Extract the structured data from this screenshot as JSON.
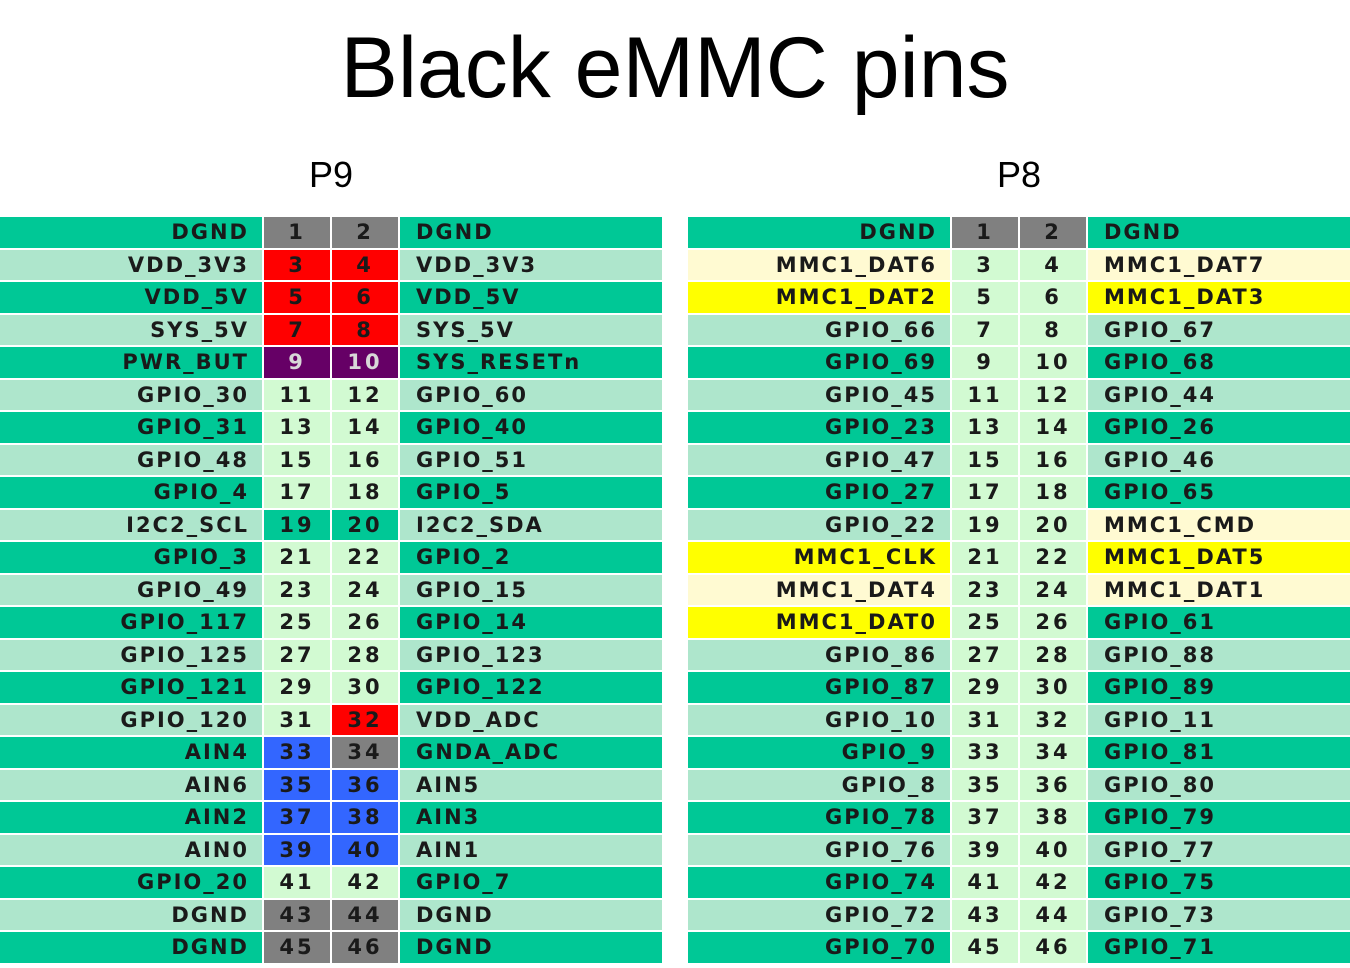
{
  "title": "Black eMMC pins",
  "colors": {
    "dark_green": "#00c896",
    "light_green": "#aee6cc",
    "pin_green": "#d2fad2",
    "gray": "#808080",
    "red": "#ff0000",
    "purple": "#660066",
    "blue": "#3366ff",
    "yellow": "#ffff00",
    "cream": "#fffad2"
  },
  "connectors": [
    {
      "label": "P9",
      "rows": [
        {
          "left": "DGND",
          "lp": "1",
          "rp": "2",
          "right": "DGND",
          "lc": "dark_green",
          "lpc": "gray",
          "rpc": "gray",
          "rc": "dark_green"
        },
        {
          "left": "VDD_3V3",
          "lp": "3",
          "rp": "4",
          "right": "VDD_3V3",
          "lc": "light_green",
          "lpc": "red",
          "rpc": "red",
          "rc": "light_green"
        },
        {
          "left": "VDD_5V",
          "lp": "5",
          "rp": "6",
          "right": "VDD_5V",
          "lc": "dark_green",
          "lpc": "red",
          "rpc": "red",
          "rc": "dark_green"
        },
        {
          "left": "SYS_5V",
          "lp": "7",
          "rp": "8",
          "right": "SYS_5V",
          "lc": "light_green",
          "lpc": "red",
          "rpc": "red",
          "rc": "light_green"
        },
        {
          "left": "PWR_BUT",
          "lp": "9",
          "rp": "10",
          "right": "SYS_RESETn",
          "lc": "dark_green",
          "lpc": "purple",
          "rpc": "purple",
          "rc": "dark_green"
        },
        {
          "left": "GPIO_30",
          "lp": "11",
          "rp": "12",
          "right": "GPIO_60",
          "lc": "light_green",
          "lpc": "pin_green",
          "rpc": "pin_green",
          "rc": "light_green"
        },
        {
          "left": "GPIO_31",
          "lp": "13",
          "rp": "14",
          "right": "GPIO_40",
          "lc": "dark_green",
          "lpc": "pin_green",
          "rpc": "pin_green",
          "rc": "dark_green"
        },
        {
          "left": "GPIO_48",
          "lp": "15",
          "rp": "16",
          "right": "GPIO_51",
          "lc": "light_green",
          "lpc": "pin_green",
          "rpc": "pin_green",
          "rc": "light_green"
        },
        {
          "left": "GPIO_4",
          "lp": "17",
          "rp": "18",
          "right": "GPIO_5",
          "lc": "dark_green",
          "lpc": "pin_green",
          "rpc": "pin_green",
          "rc": "dark_green"
        },
        {
          "left": "I2C2_SCL",
          "lp": "19",
          "rp": "20",
          "right": "I2C2_SDA",
          "lc": "light_green",
          "lpc": "dark_green",
          "rpc": "dark_green",
          "rc": "light_green"
        },
        {
          "left": "GPIO_3",
          "lp": "21",
          "rp": "22",
          "right": "GPIO_2",
          "lc": "dark_green",
          "lpc": "pin_green",
          "rpc": "pin_green",
          "rc": "dark_green"
        },
        {
          "left": "GPIO_49",
          "lp": "23",
          "rp": "24",
          "right": "GPIO_15",
          "lc": "light_green",
          "lpc": "pin_green",
          "rpc": "pin_green",
          "rc": "light_green"
        },
        {
          "left": "GPIO_117",
          "lp": "25",
          "rp": "26",
          "right": "GPIO_14",
          "lc": "dark_green",
          "lpc": "pin_green",
          "rpc": "pin_green",
          "rc": "dark_green"
        },
        {
          "left": "GPIO_125",
          "lp": "27",
          "rp": "28",
          "right": "GPIO_123",
          "lc": "light_green",
          "lpc": "pin_green",
          "rpc": "pin_green",
          "rc": "light_green"
        },
        {
          "left": "GPIO_121",
          "lp": "29",
          "rp": "30",
          "right": "GPIO_122",
          "lc": "dark_green",
          "lpc": "pin_green",
          "rpc": "pin_green",
          "rc": "dark_green"
        },
        {
          "left": "GPIO_120",
          "lp": "31",
          "rp": "32",
          "right": "VDD_ADC",
          "lc": "light_green",
          "lpc": "pin_green",
          "rpc": "red",
          "rc": "light_green"
        },
        {
          "left": "AIN4",
          "lp": "33",
          "rp": "34",
          "right": "GNDA_ADC",
          "lc": "dark_green",
          "lpc": "blue",
          "rpc": "gray",
          "rc": "dark_green"
        },
        {
          "left": "AIN6",
          "lp": "35",
          "rp": "36",
          "right": "AIN5",
          "lc": "light_green",
          "lpc": "blue",
          "rpc": "blue",
          "rc": "light_green"
        },
        {
          "left": "AIN2",
          "lp": "37",
          "rp": "38",
          "right": "AIN3",
          "lc": "dark_green",
          "lpc": "blue",
          "rpc": "blue",
          "rc": "dark_green"
        },
        {
          "left": "AIN0",
          "lp": "39",
          "rp": "40",
          "right": "AIN1",
          "lc": "light_green",
          "lpc": "blue",
          "rpc": "blue",
          "rc": "light_green"
        },
        {
          "left": "GPIO_20",
          "lp": "41",
          "rp": "42",
          "right": "GPIO_7",
          "lc": "dark_green",
          "lpc": "pin_green",
          "rpc": "pin_green",
          "rc": "dark_green"
        },
        {
          "left": "DGND",
          "lp": "43",
          "rp": "44",
          "right": "DGND",
          "lc": "light_green",
          "lpc": "gray",
          "rpc": "gray",
          "rc": "light_green"
        },
        {
          "left": "DGND",
          "lp": "45",
          "rp": "46",
          "right": "DGND",
          "lc": "dark_green",
          "lpc": "gray",
          "rpc": "gray",
          "rc": "dark_green"
        }
      ]
    },
    {
      "label": "P8",
      "rows": [
        {
          "left": "DGND",
          "lp": "1",
          "rp": "2",
          "right": "DGND",
          "lc": "dark_green",
          "lpc": "gray",
          "rpc": "gray",
          "rc": "dark_green"
        },
        {
          "left": "MMC1_DAT6",
          "lp": "3",
          "rp": "4",
          "right": "MMC1_DAT7",
          "lc": "cream",
          "lpc": "pin_green",
          "rpc": "pin_green",
          "rc": "cream"
        },
        {
          "left": "MMC1_DAT2",
          "lp": "5",
          "rp": "6",
          "right": "MMC1_DAT3",
          "lc": "yellow",
          "lpc": "pin_green",
          "rpc": "pin_green",
          "rc": "yellow"
        },
        {
          "left": "GPIO_66",
          "lp": "7",
          "rp": "8",
          "right": "GPIO_67",
          "lc": "light_green",
          "lpc": "pin_green",
          "rpc": "pin_green",
          "rc": "light_green"
        },
        {
          "left": "GPIO_69",
          "lp": "9",
          "rp": "10",
          "right": "GPIO_68",
          "lc": "dark_green",
          "lpc": "pin_green",
          "rpc": "pin_green",
          "rc": "dark_green"
        },
        {
          "left": "GPIO_45",
          "lp": "11",
          "rp": "12",
          "right": "GPIO_44",
          "lc": "light_green",
          "lpc": "pin_green",
          "rpc": "pin_green",
          "rc": "light_green"
        },
        {
          "left": "GPIO_23",
          "lp": "13",
          "rp": "14",
          "right": "GPIO_26",
          "lc": "dark_green",
          "lpc": "pin_green",
          "rpc": "pin_green",
          "rc": "dark_green"
        },
        {
          "left": "GPIO_47",
          "lp": "15",
          "rp": "16",
          "right": "GPIO_46",
          "lc": "light_green",
          "lpc": "pin_green",
          "rpc": "pin_green",
          "rc": "light_green"
        },
        {
          "left": "GPIO_27",
          "lp": "17",
          "rp": "18",
          "right": "GPIO_65",
          "lc": "dark_green",
          "lpc": "pin_green",
          "rpc": "pin_green",
          "rc": "dark_green"
        },
        {
          "left": "GPIO_22",
          "lp": "19",
          "rp": "20",
          "right": "MMC1_CMD",
          "lc": "light_green",
          "lpc": "pin_green",
          "rpc": "pin_green",
          "rc": "cream"
        },
        {
          "left": "MMC1_CLK",
          "lp": "21",
          "rp": "22",
          "right": "MMC1_DAT5",
          "lc": "yellow",
          "lpc": "pin_green",
          "rpc": "pin_green",
          "rc": "yellow"
        },
        {
          "left": "MMC1_DAT4",
          "lp": "23",
          "rp": "24",
          "right": "MMC1_DAT1",
          "lc": "cream",
          "lpc": "pin_green",
          "rpc": "pin_green",
          "rc": "cream"
        },
        {
          "left": "MMC1_DAT0",
          "lp": "25",
          "rp": "26",
          "right": "GPIO_61",
          "lc": "yellow",
          "lpc": "pin_green",
          "rpc": "pin_green",
          "rc": "dark_green"
        },
        {
          "left": "GPIO_86",
          "lp": "27",
          "rp": "28",
          "right": "GPIO_88",
          "lc": "light_green",
          "lpc": "pin_green",
          "rpc": "pin_green",
          "rc": "light_green"
        },
        {
          "left": "GPIO_87",
          "lp": "29",
          "rp": "30",
          "right": "GPIO_89",
          "lc": "dark_green",
          "lpc": "pin_green",
          "rpc": "pin_green",
          "rc": "dark_green"
        },
        {
          "left": "GPIO_10",
          "lp": "31",
          "rp": "32",
          "right": "GPIO_11",
          "lc": "light_green",
          "lpc": "pin_green",
          "rpc": "pin_green",
          "rc": "light_green"
        },
        {
          "left": "GPIO_9",
          "lp": "33",
          "rp": "34",
          "right": "GPIO_81",
          "lc": "dark_green",
          "lpc": "pin_green",
          "rpc": "pin_green",
          "rc": "dark_green"
        },
        {
          "left": "GPIO_8",
          "lp": "35",
          "rp": "36",
          "right": "GPIO_80",
          "lc": "light_green",
          "lpc": "pin_green",
          "rpc": "pin_green",
          "rc": "light_green"
        },
        {
          "left": "GPIO_78",
          "lp": "37",
          "rp": "38",
          "right": "GPIO_79",
          "lc": "dark_green",
          "lpc": "pin_green",
          "rpc": "pin_green",
          "rc": "dark_green"
        },
        {
          "left": "GPIO_76",
          "lp": "39",
          "rp": "40",
          "right": "GPIO_77",
          "lc": "light_green",
          "lpc": "pin_green",
          "rpc": "pin_green",
          "rc": "light_green"
        },
        {
          "left": "GPIO_74",
          "lp": "41",
          "rp": "42",
          "right": "GPIO_75",
          "lc": "dark_green",
          "lpc": "pin_green",
          "rpc": "pin_green",
          "rc": "dark_green"
        },
        {
          "left": "GPIO_72",
          "lp": "43",
          "rp": "44",
          "right": "GPIO_73",
          "lc": "light_green",
          "lpc": "pin_green",
          "rpc": "pin_green",
          "rc": "light_green"
        },
        {
          "left": "GPIO_70",
          "lp": "45",
          "rp": "46",
          "right": "GPIO_71",
          "lc": "dark_green",
          "lpc": "pin_green",
          "rpc": "pin_green",
          "rc": "dark_green"
        }
      ]
    }
  ]
}
